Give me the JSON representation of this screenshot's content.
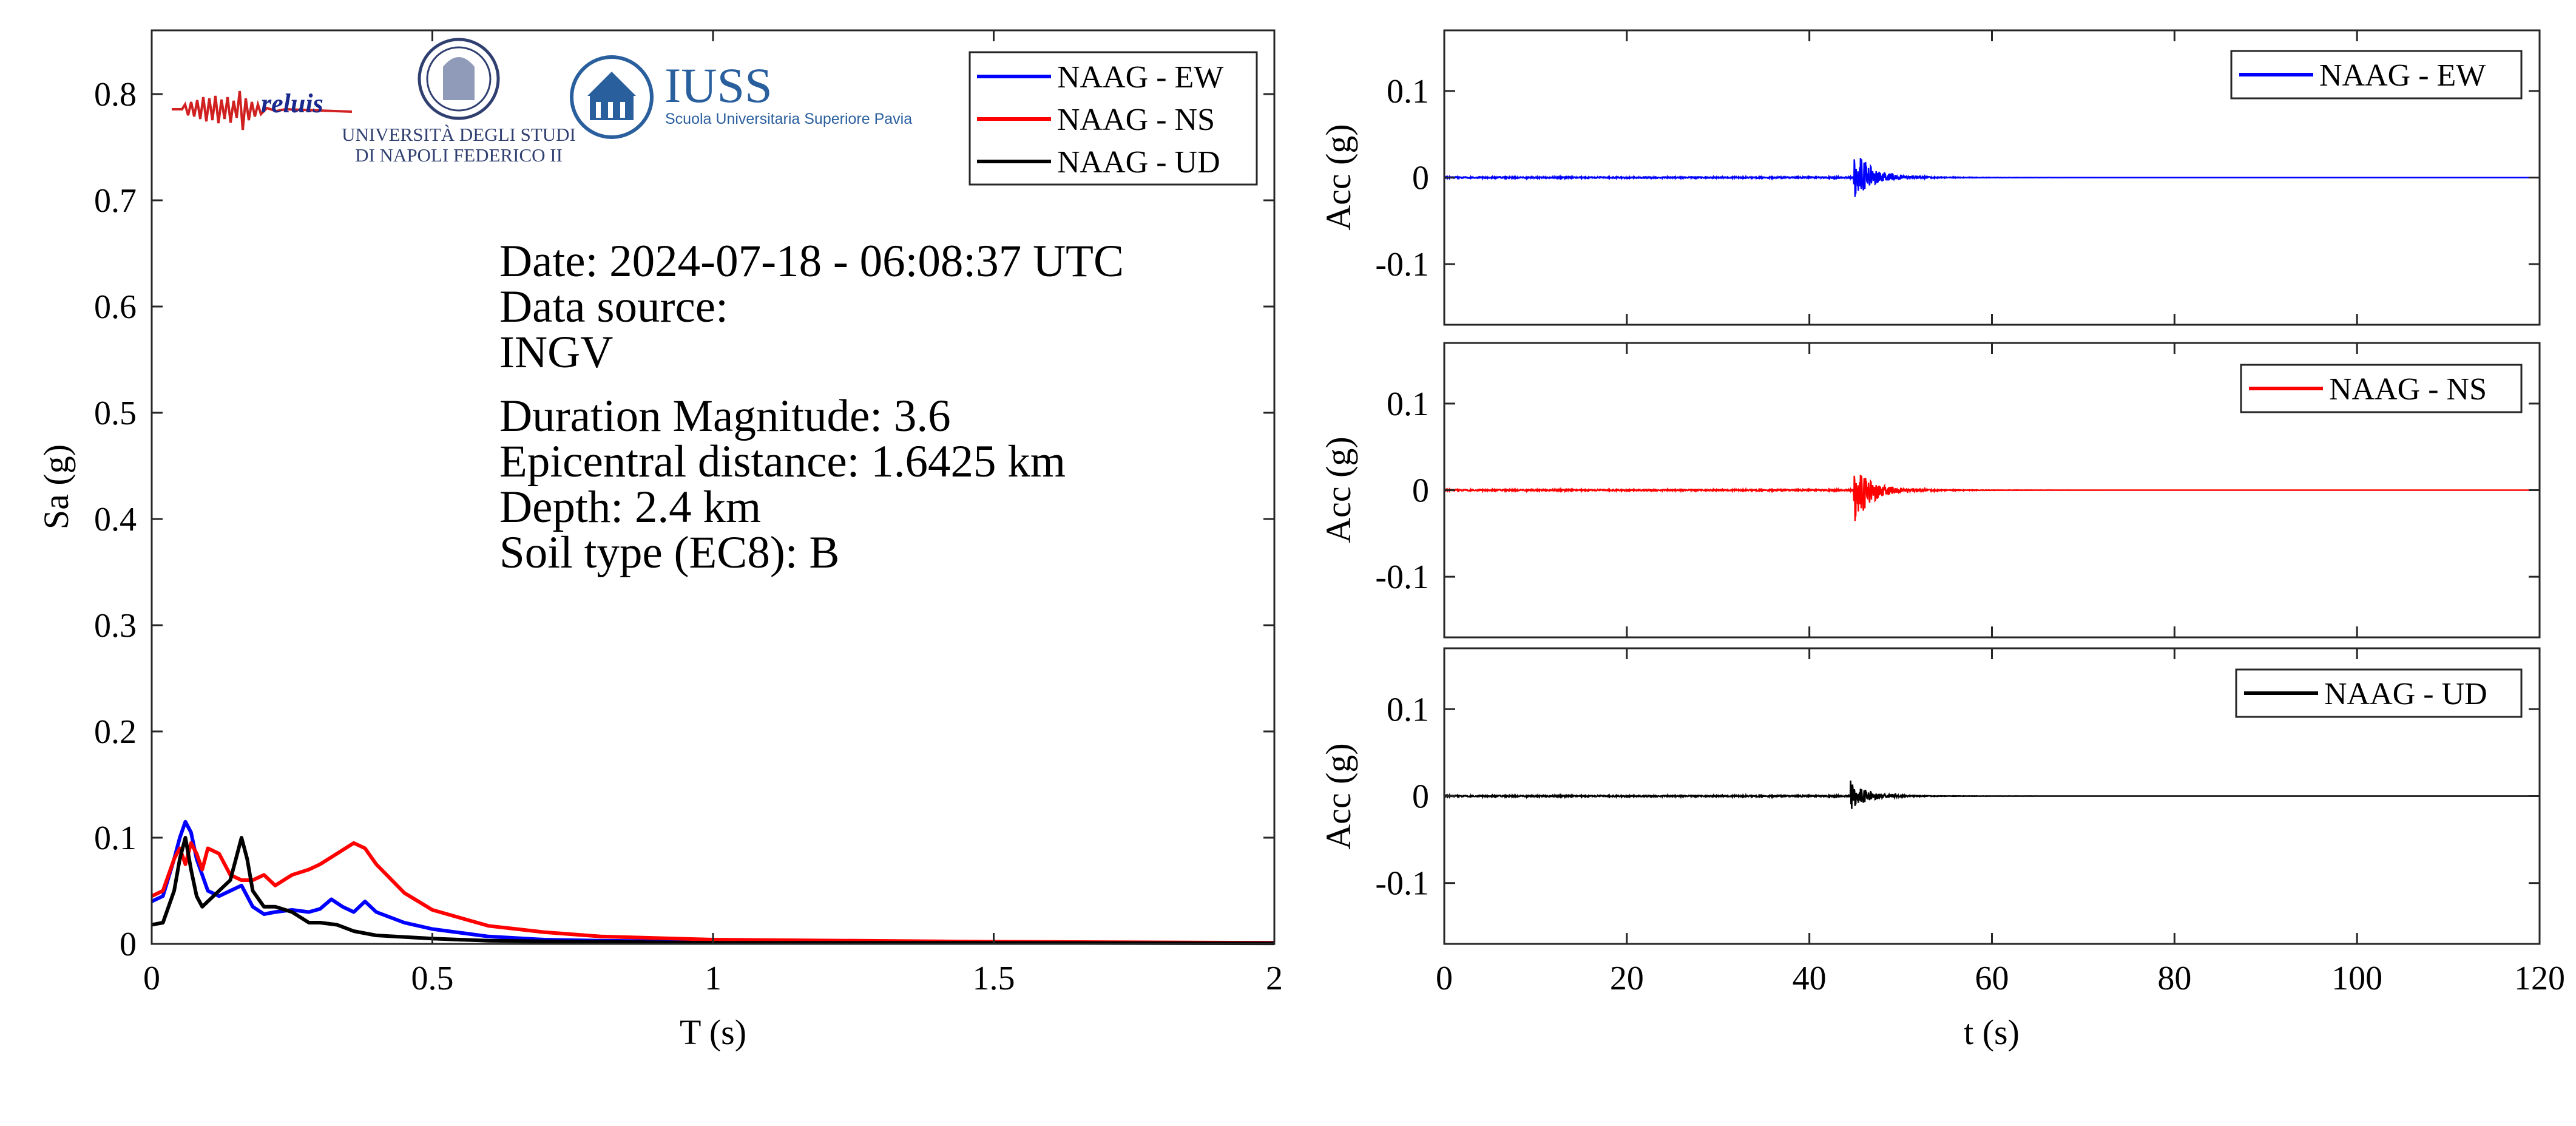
{
  "info": {
    "date_line": "Date: 2024-07-18 - 06:08:37 UTC",
    "source_label": "Data source:",
    "source_value": "INGV",
    "magnitude": "Duration Magnitude: 3.6",
    "distance": "Epicentral distance: 1.6425 km",
    "depth": "Depth: 2.4 km",
    "soil": "Soil type (EC8): B"
  },
  "logos": {
    "reluis": "reluis",
    "unina_line1": "UNIVERSITÀ DEGLI STUDI",
    "unina_line2": "DI NAPOLI FEDERICO II",
    "iuss_title": "IUSS",
    "iuss_subtitle": "Scuola Universitaria Superiore Pavia"
  },
  "colors": {
    "ew": "#0000ff",
    "ns": "#ff0000",
    "ud": "#000000",
    "axis": "#262626"
  },
  "chart_data": [
    {
      "type": "line",
      "xlabel": "T (s)",
      "ylabel": "Sa (g)",
      "xlim": [
        0,
        2
      ],
      "ylim": [
        0,
        0.86
      ],
      "xticks": [
        0,
        0.5,
        1,
        1.5,
        2
      ],
      "xtick_labels": [
        "0",
        "0.5",
        "1",
        "1.5",
        "2"
      ],
      "yticks": [
        0,
        0.1,
        0.2,
        0.3,
        0.4,
        0.5,
        0.6,
        0.7,
        0.8
      ],
      "ytick_labels": [
        "0",
        "0.1",
        "0.2",
        "0.3",
        "0.4",
        "0.5",
        "0.6",
        "0.7",
        "0.8"
      ],
      "legend_position": "top-right",
      "series": [
        {
          "name": "NAAG - EW",
          "color": "#0000ff",
          "x": [
            0,
            0.02,
            0.04,
            0.05,
            0.06,
            0.07,
            0.08,
            0.1,
            0.12,
            0.14,
            0.16,
            0.18,
            0.2,
            0.22,
            0.25,
            0.28,
            0.3,
            0.32,
            0.34,
            0.36,
            0.38,
            0.4,
            0.45,
            0.5,
            0.6,
            0.7,
            0.8,
            1,
            1.5,
            2
          ],
          "y": [
            0.04,
            0.045,
            0.08,
            0.1,
            0.115,
            0.105,
            0.08,
            0.05,
            0.045,
            0.05,
            0.055,
            0.035,
            0.028,
            0.03,
            0.032,
            0.03,
            0.033,
            0.042,
            0.035,
            0.03,
            0.04,
            0.03,
            0.02,
            0.014,
            0.007,
            0.004,
            0.003,
            0.002,
            0.001,
            0.001
          ]
        },
        {
          "name": "NAAG - NS",
          "color": "#ff0000",
          "x": [
            0,
            0.02,
            0.04,
            0.05,
            0.06,
            0.07,
            0.08,
            0.09,
            0.1,
            0.12,
            0.14,
            0.16,
            0.18,
            0.2,
            0.22,
            0.25,
            0.28,
            0.3,
            0.33,
            0.36,
            0.38,
            0.4,
            0.45,
            0.5,
            0.6,
            0.7,
            0.8,
            1,
            1.5,
            2
          ],
          "y": [
            0.045,
            0.05,
            0.08,
            0.09,
            0.075,
            0.095,
            0.085,
            0.07,
            0.09,
            0.085,
            0.065,
            0.06,
            0.06,
            0.065,
            0.055,
            0.065,
            0.07,
            0.075,
            0.085,
            0.095,
            0.09,
            0.075,
            0.048,
            0.032,
            0.017,
            0.011,
            0.007,
            0.004,
            0.002,
            0.001
          ]
        },
        {
          "name": "NAAG - UD",
          "color": "#000000",
          "x": [
            0,
            0.02,
            0.04,
            0.05,
            0.06,
            0.07,
            0.08,
            0.09,
            0.1,
            0.12,
            0.14,
            0.16,
            0.17,
            0.18,
            0.2,
            0.22,
            0.25,
            0.28,
            0.3,
            0.33,
            0.36,
            0.4,
            0.5,
            0.6,
            0.8,
            1,
            1.5,
            2
          ],
          "y": [
            0.018,
            0.02,
            0.05,
            0.08,
            0.1,
            0.07,
            0.045,
            0.035,
            0.04,
            0.05,
            0.06,
            0.1,
            0.08,
            0.05,
            0.035,
            0.035,
            0.03,
            0.02,
            0.02,
            0.018,
            0.012,
            0.008,
            0.005,
            0.003,
            0.002,
            0.001,
            0.001,
            0.0005
          ]
        }
      ]
    },
    {
      "type": "line",
      "ylabel": "Acc (g)",
      "xlim": [
        0,
        120
      ],
      "ylim": [
        -0.17,
        0.17
      ],
      "yticks": [
        0.1,
        0,
        -0.1
      ],
      "ytick_labels": [
        "0.1",
        "0",
        "-0.1"
      ],
      "legend_position": "top-right",
      "series": [
        {
          "name": "NAAG - EW",
          "color": "#0000ff",
          "event_start_s": 44.8,
          "peak_pos_g": 0.038,
          "peak_neg_g": -0.028
        }
      ]
    },
    {
      "type": "line",
      "ylabel": "Acc (g)",
      "xlim": [
        0,
        120
      ],
      "ylim": [
        -0.17,
        0.17
      ],
      "yticks": [
        0.1,
        0,
        -0.1
      ],
      "ytick_labels": [
        "0.1",
        "0",
        "-0.1"
      ],
      "legend_position": "top-right",
      "series": [
        {
          "name": "NAAG - NS",
          "color": "#ff0000",
          "event_start_s": 44.8,
          "peak_pos_g": 0.03,
          "peak_neg_g": -0.045
        }
      ]
    },
    {
      "type": "line",
      "xlabel": "t (s)",
      "ylabel": "Acc (g)",
      "xlim": [
        0,
        120
      ],
      "ylim": [
        -0.17,
        0.17
      ],
      "xticks": [
        0,
        20,
        40,
        60,
        80,
        100,
        120
      ],
      "xtick_labels": [
        "0",
        "20",
        "40",
        "60",
        "80",
        "100",
        "120"
      ],
      "yticks": [
        0.1,
        0,
        -0.1
      ],
      "ytick_labels": [
        "0.1",
        "0",
        "-0.1"
      ],
      "legend_position": "top-right",
      "series": [
        {
          "name": "NAAG - UD",
          "color": "#000000",
          "event_start_s": 44.5,
          "peak_pos_g": 0.017,
          "peak_neg_g": -0.017
        }
      ]
    }
  ]
}
